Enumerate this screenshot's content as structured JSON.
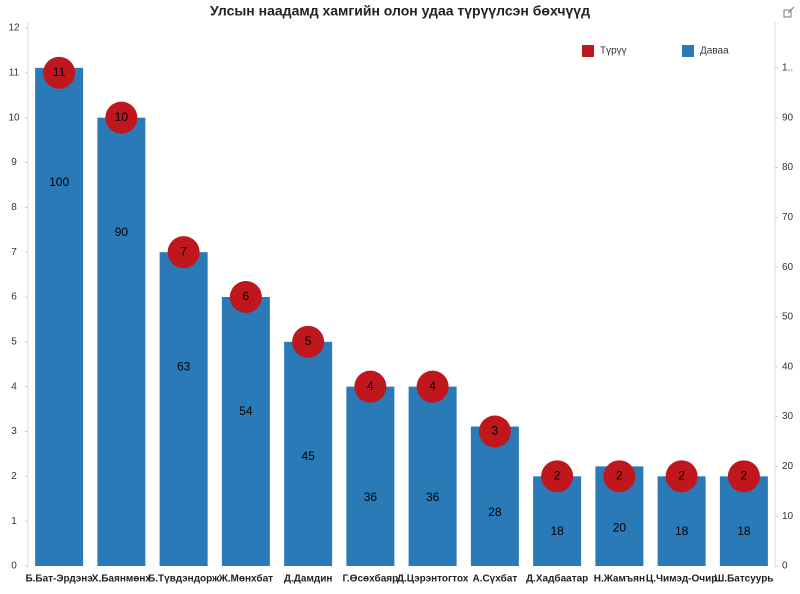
{
  "chart_data": {
    "type": "bar",
    "title": "Улсын наадамд хамгийн олон удаа түрүүлсэн бөхчүүд",
    "categories": [
      "Б.Бат-Эрдэнэ",
      "Х.Баянмөнх",
      "Б.Түвдэндорж",
      "Ж.Мөнхбат",
      "Д.Дамдин",
      "Г.Өсөхбаяр",
      "Д.Цэрэнтогтох",
      "А.Сүхбат",
      "Д.Хадбаатар",
      "Н.Жамъян",
      "Ц.Чимэд-Очир",
      "Ш.Батсуурь"
    ],
    "series": [
      {
        "name": "Түрүү",
        "color": "#c0161e",
        "values": [
          11,
          10,
          7,
          6,
          5,
          4,
          4,
          3,
          2,
          2,
          2,
          2
        ]
      },
      {
        "name": "Даваа",
        "color": "#2a7ab8",
        "axis": "y2",
        "values": [
          100,
          90,
          63,
          54,
          45,
          36,
          36,
          28,
          18,
          20,
          18,
          18
        ]
      }
    ],
    "ylim": [
      0,
      12
    ],
    "yticks": [
      0,
      1,
      2,
      3,
      4,
      5,
      6,
      7,
      8,
      9,
      10,
      11,
      12
    ],
    "y2lim": [
      0,
      108
    ],
    "y2ticks": [
      0,
      10,
      20,
      30,
      40,
      50,
      60,
      70,
      80,
      90,
      {
        "value": 100,
        "label": "1.."
      }
    ],
    "legend": "top-right"
  }
}
